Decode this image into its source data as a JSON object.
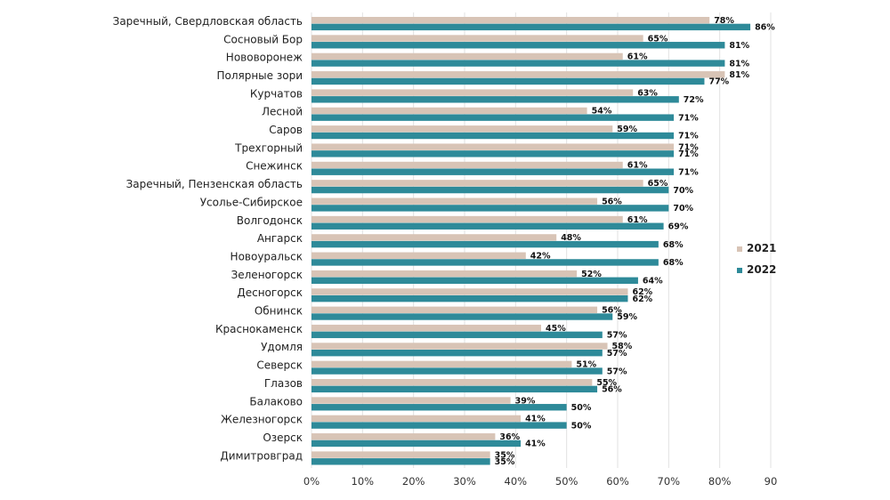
{
  "chart_data": {
    "type": "bar",
    "orientation": "horizontal",
    "title": "",
    "xlabel": "",
    "ylabel": "",
    "xlim": [
      0,
      90
    ],
    "grid": true,
    "legend": "right",
    "categories": [
      "Заречный, Свердловская область",
      "Сосновый Бор",
      "Нововоронеж",
      "Полярные зори",
      "Курчатов",
      "Лесной",
      "Саров",
      "Трехгорный",
      "Снежинск",
      "Заречный, Пензенская область",
      "Усолье-Сибирское",
      "Волгодонск",
      "Ангарск",
      "Новоуральск",
      "Зеленогорск",
      "Десногорск",
      "Обнинск",
      "Краснокаменск",
      "Удомля",
      "Северск",
      "Глазов",
      "Балаково",
      "Железногорск",
      "Озерск",
      "Димитровград"
    ],
    "series": [
      {
        "name": "2021",
        "color": "#d8c4b6",
        "values": [
          78,
          65,
          61,
          81,
          63,
          54,
          59,
          71,
          61,
          65,
          56,
          61,
          48,
          42,
          52,
          62,
          56,
          45,
          58,
          51,
          55,
          39,
          41,
          36,
          35
        ]
      },
      {
        "name": "2022",
        "color": "#2e8a99",
        "values": [
          86,
          81,
          81,
          77,
          72,
          71,
          71,
          71,
          71,
          70,
          70,
          69,
          68,
          68,
          64,
          62,
          59,
          57,
          57,
          57,
          56,
          50,
          50,
          41,
          35
        ]
      }
    ],
    "value_labels": [
      [
        "78%",
        "65%",
        "61%",
        "81%",
        "63%",
        "54%",
        "59%",
        "71%",
        "61%",
        "65%",
        "56%",
        "61%",
        "48%",
        "42%",
        "52%",
        "62%",
        "56%",
        "45%",
        "58%",
        "51%",
        "55%",
        "39%",
        "41%",
        "36%",
        "35%"
      ],
      [
        "86%",
        "81%",
        "81%",
        "77%",
        "72%",
        "71%",
        "71%",
        "71%",
        "71%",
        "70%",
        "70%",
        "69%",
        "68%",
        "68%",
        "64%",
        "62%",
        "59%",
        "57%",
        "57%",
        "57%",
        "56%",
        "50%",
        "50%",
        "41%",
        "35%"
      ]
    ],
    "x_ticks": [
      0,
      10,
      20,
      30,
      40,
      50,
      60,
      70,
      80,
      90
    ],
    "x_tick_labels": [
      "0%",
      "10%",
      "20%",
      "30%",
      "40%",
      "50%",
      "60%",
      "70%",
      "80%",
      "90"
    ]
  }
}
